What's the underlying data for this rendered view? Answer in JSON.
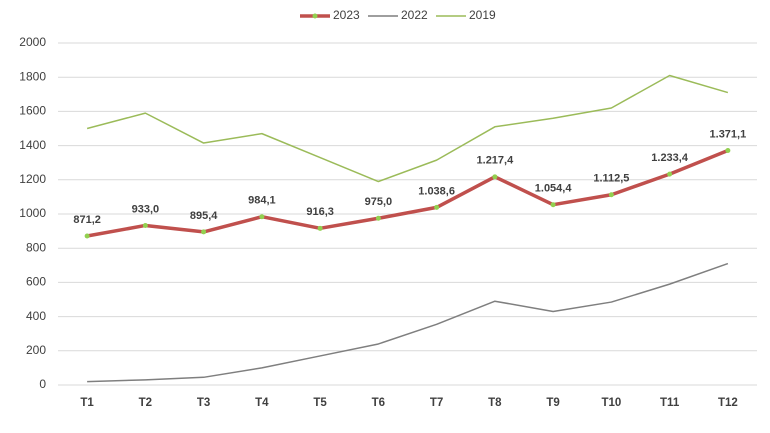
{
  "chart_data": {
    "type": "line",
    "categories": [
      "T1",
      "T2",
      "T3",
      "T4",
      "T5",
      "T6",
      "T7",
      "T8",
      "T9",
      "T10",
      "T11",
      "T12"
    ],
    "series": [
      {
        "name": "2023",
        "color": "#c0504d",
        "marker_color": "#92d050",
        "values": [
          871.2,
          933.0,
          895.4,
          984.1,
          916.3,
          975.0,
          1038.6,
          1217.4,
          1054.4,
          1112.5,
          1233.4,
          1371.1
        ],
        "value_labels": [
          "871,2",
          "933,0",
          "895,4",
          "984,1",
          "916,3",
          "975,0",
          "1.038,6",
          "1.217,4",
          "1.054,4",
          "1.112,5",
          "1.233,4",
          "1.371,1"
        ]
      },
      {
        "name": "2022",
        "color": "#7f7f7f",
        "values": [
          20,
          30,
          45,
          100,
          170,
          240,
          355,
          490,
          430,
          485,
          590,
          710
        ]
      },
      {
        "name": "2019",
        "color": "#9bbb59",
        "values": [
          1500,
          1590,
          1415,
          1470,
          1330,
          1190,
          1315,
          1510,
          1560,
          1620,
          1810,
          1710
        ]
      }
    ],
    "ylim": [
      0,
      2000
    ],
    "yticks": [
      0,
      200,
      400,
      600,
      800,
      1000,
      1200,
      1400,
      1600,
      1800,
      2000
    ],
    "grid": true,
    "legend": "top"
  }
}
